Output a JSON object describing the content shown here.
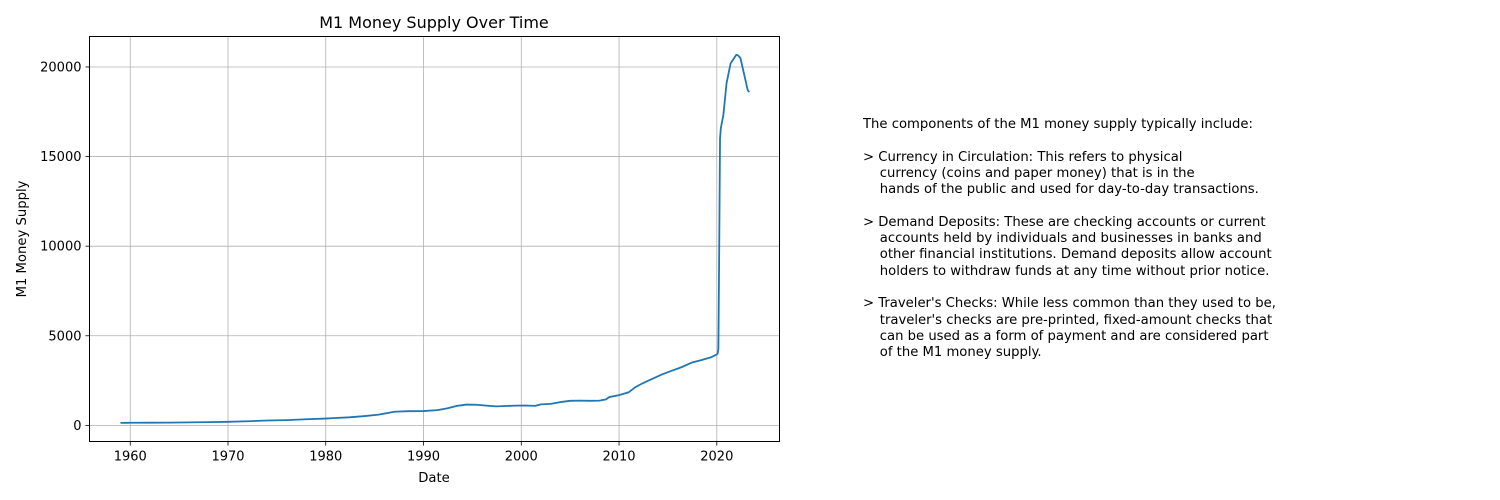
{
  "chart_data": {
    "type": "line",
    "title": "M1 Money Supply Over Time",
    "xlabel": "Date",
    "ylabel": "M1 Money Supply",
    "xlim": [
      "1955-11-01",
      "2026-06-01"
    ],
    "ylim": [
      -900,
      21700
    ],
    "xticks": [
      "1960",
      "1970",
      "1980",
      "1990",
      "2000",
      "2010",
      "2020"
    ],
    "yticks": [
      0,
      5000,
      10000,
      15000,
      20000
    ],
    "grid": true,
    "color": "#1f77b4",
    "series": [
      {
        "x": [
          "1959-01-01",
          "1960-01-01",
          "1962-01-01",
          "1964-01-01",
          "1966-01-01",
          "1968-01-01",
          "1970-01-01",
          "1972-01-01",
          "1974-01-01",
          "1976-01-01",
          "1978-01-01",
          "1980-01-01",
          "1981-01-01",
          "1982-06-01",
          "1984-01-01",
          "1985-06-01",
          "1986-06-01",
          "1987-01-01",
          "1988-06-01",
          "1990-01-01",
          "1991-06-01",
          "1992-06-01",
          "1993-06-01",
          "1994-06-01",
          "1995-06-01",
          "1996-06-01",
          "1997-06-01",
          "1998-06-01",
          "1999-06-01",
          "2000-06-01",
          "2001-06-01",
          "2002-01-01",
          "2003-01-01",
          "2004-01-01",
          "2005-01-01",
          "2006-01-01",
          "2007-01-01",
          "2008-01-01",
          "2008-09-01",
          "2009-01-01",
          "2010-01-01",
          "2011-01-01",
          "2011-09-01",
          "2012-06-01",
          "2013-06-01",
          "2014-06-01",
          "2015-06-01",
          "2016-06-01",
          "2017-06-01",
          "2018-06-01",
          "2019-06-01",
          "2020-01-01",
          "2020-02-01",
          "2020-03-01",
          "2020-04-01",
          "2020-05-01",
          "2020-06-01",
          "2020-09-01",
          "2021-01-01",
          "2021-06-01",
          "2022-01-01",
          "2022-03-01",
          "2022-06-01",
          "2022-09-01",
          "2023-01-01",
          "2023-03-01",
          "2023-05-01"
        ],
        "y": [
          140,
          145,
          150,
          155,
          165,
          180,
          200,
          230,
          270,
          295,
          340,
          380,
          410,
          450,
          520,
          600,
          700,
          760,
          790,
          800,
          850,
          950,
          1090,
          1160,
          1150,
          1100,
          1060,
          1080,
          1100,
          1110,
          1090,
          1170,
          1200,
          1300,
          1370,
          1380,
          1370,
          1380,
          1450,
          1580,
          1690,
          1850,
          2130,
          2350,
          2600,
          2850,
          3050,
          3250,
          3500,
          3640,
          3800,
          3960,
          4010,
          4280,
          10000,
          16000,
          16600,
          17300,
          19100,
          20200,
          20680,
          20650,
          20500,
          19900,
          19100,
          18700,
          18600
        ]
      }
    ]
  },
  "note": {
    "lines": [
      "The components of the M1 money supply typically include:",
      "",
      "> Currency in Circulation: This refers to physical",
      "    currency (coins and paper money) that is in the",
      "    hands of the public and used for day-to-day transactions.",
      "",
      "> Demand Deposits: These are checking accounts or current",
      "    accounts held by individuals and businesses in banks and",
      "    other financial institutions. Demand deposits allow account",
      "    holders to withdraw funds at any time without prior notice.",
      "",
      "> Traveler's Checks: While less common than they used to be,",
      "    traveler's checks are pre-printed, fixed-amount checks that",
      "    can be used as a form of payment and are considered part",
      "    of the M1 money supply."
    ]
  }
}
